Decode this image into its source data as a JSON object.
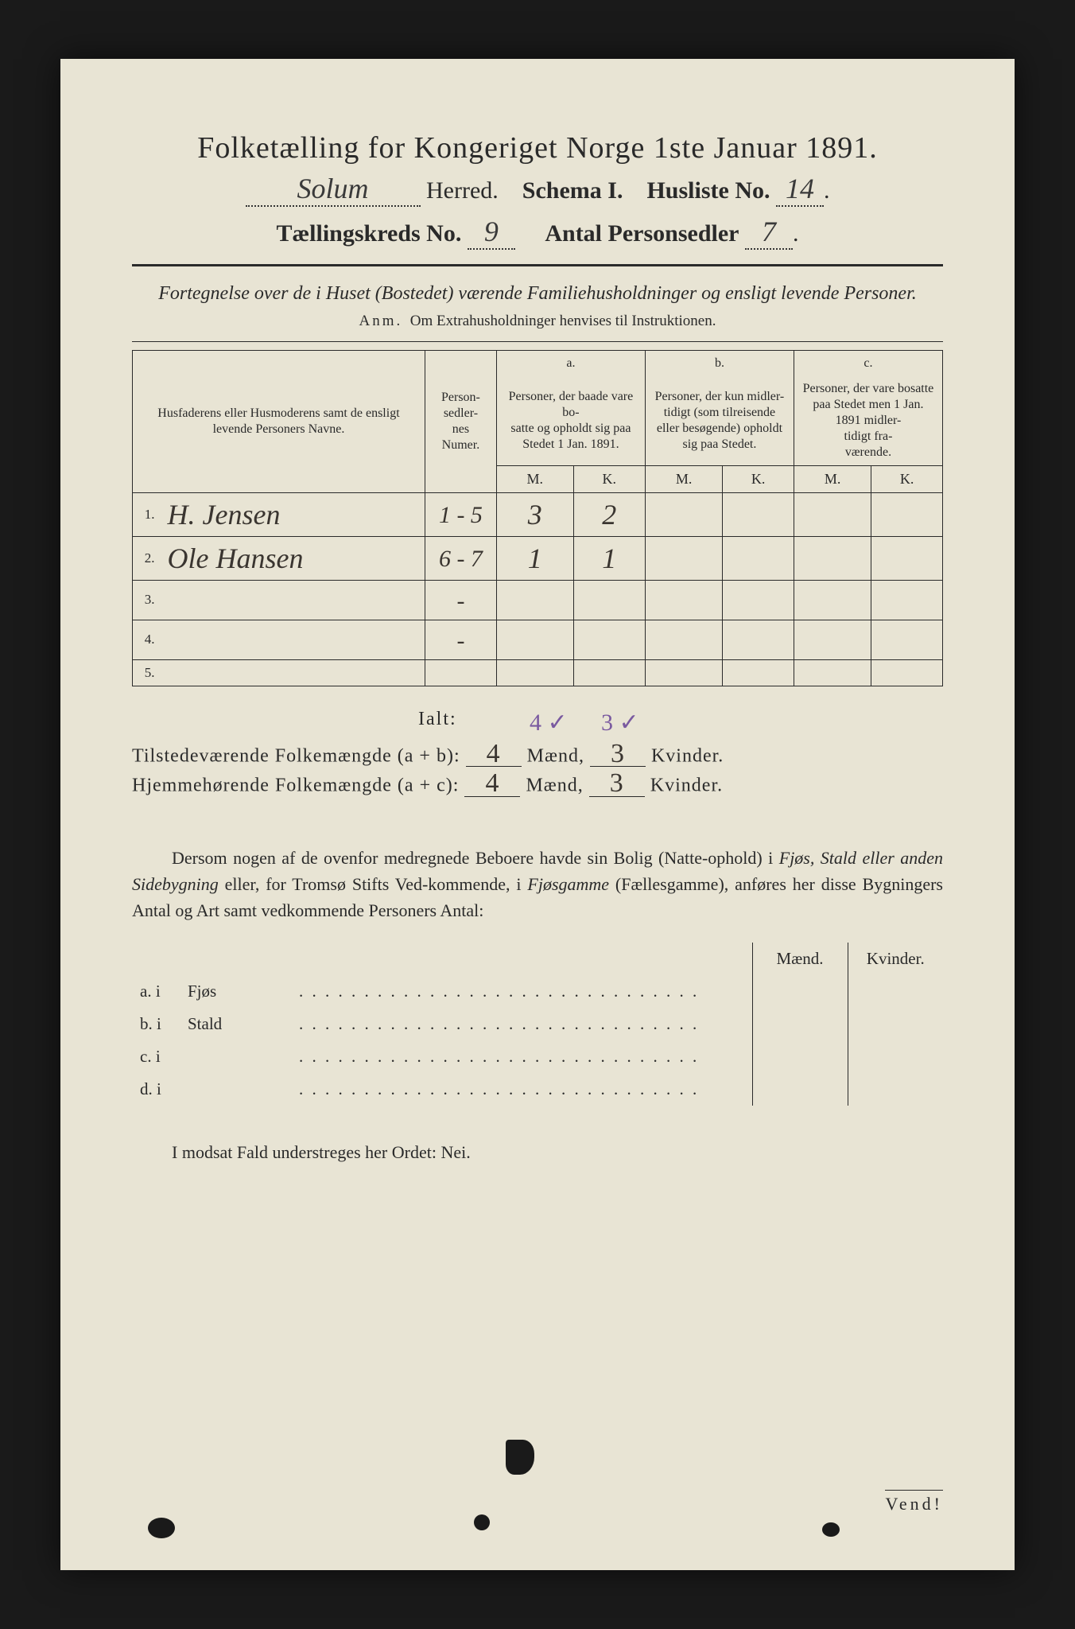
{
  "header": {
    "title": "Folketælling for Kongeriget Norge 1ste Januar 1891.",
    "herred_hand": "Solum",
    "herred_label": "Herred.",
    "schema": "Schema I.",
    "husliste_label": "Husliste No.",
    "husliste_no": "14",
    "kreds_label": "Tællingskreds No.",
    "kreds_no": "9",
    "personsedler_label": "Antal Personsedler",
    "personsedler_no": "7"
  },
  "subtitle": "Fortegnelse over de i Huset (Bostedet) værende Familiehusholdninger og ensligt levende Personer.",
  "anm_label": "Anm.",
  "anm_text": "Om Extrahusholdninger henvises til Instruktionen.",
  "table": {
    "head_name": "Husfaderens eller Husmoderens samt de ensligt levende Personers Navne.",
    "head_num": "Person-\nsedler-\nnes\nNumer.",
    "head_a_tag": "a.",
    "head_a": "Personer, der baade vare bo-\nsatte og opholdt sig paa Stedet 1 Jan. 1891.",
    "head_b_tag": "b.",
    "head_b": "Personer, der kun midler-\ntidigt (som tilreisende eller besøgende) opholdt sig paa Stedet.",
    "head_c_tag": "c.",
    "head_c": "Personer, der vare bosatte paa Stedet men 1 Jan. 1891 midler-\ntidigt fra-\nværende.",
    "m": "M.",
    "k": "K.",
    "rows": [
      {
        "n": "1.",
        "name": "H. Jensen",
        "num": "1 - 5",
        "aM": "3",
        "aK": "2",
        "bM": "",
        "bK": "",
        "cM": "",
        "cK": ""
      },
      {
        "n": "2.",
        "name": "Ole Hansen",
        "num": "6 - 7",
        "aM": "1",
        "aK": "1",
        "bM": "",
        "bK": "",
        "cM": "",
        "cK": ""
      },
      {
        "n": "3.",
        "name": "",
        "num": "-",
        "aM": "",
        "aK": "",
        "bM": "",
        "bK": "",
        "cM": "",
        "cK": ""
      },
      {
        "n": "4.",
        "name": "",
        "num": "-",
        "aM": "",
        "aK": "",
        "bM": "",
        "bK": "",
        "cM": "",
        "cK": ""
      },
      {
        "n": "5.",
        "name": "",
        "num": "",
        "aM": "",
        "aK": "",
        "bM": "",
        "bK": "",
        "cM": "",
        "cK": ""
      }
    ]
  },
  "totals": {
    "ialt": "Ialt:",
    "check_m": "4 ✓",
    "check_k": "3 ✓",
    "line1_label": "Tilstedeværende Folkemængde (a + b):",
    "line2_label": "Hjemmehørende Folkemængde (a + c):",
    "maend": "Mænd,",
    "kvinder": "Kvinder.",
    "ab_m": "4",
    "ab_k": "3",
    "ac_m": "4",
    "ac_k": "3"
  },
  "body": {
    "p1a": "Dersom nogen af de ovenfor medregnede Beboere havde sin Bolig (Natte-ophold) i ",
    "p1b": "Fjøs, Stald eller anden Sidebygning",
    "p1c": " eller, for Tromsø Stifts Ved-kommende, i ",
    "p1d": "Fjøsgamme",
    "p1e": " (Fællesgamme), anføres her disse Bygningers Antal og Art samt vedkommende Personers Antal:"
  },
  "outbld": {
    "maend": "Mænd.",
    "kvinder": "Kvinder.",
    "rows": [
      {
        "lab": "a.  i",
        "type": "Fjøs"
      },
      {
        "lab": "b.  i",
        "type": "Stald"
      },
      {
        "lab": "c.  i",
        "type": ""
      },
      {
        "lab": "d.  i",
        "type": ""
      }
    ],
    "dots": ". . . . . . . . . . . . . . . . . . . . . . . . . . . . . . ."
  },
  "nei": "I modsat Fald understreges her Ordet: Nei.",
  "vend": "Vend!",
  "colors": {
    "paper": "#e8e4d4",
    "ink": "#2a2a2a",
    "handwriting": "#3a3530",
    "purple_pencil": "#7a5aa0",
    "background": "#1a1a1a"
  }
}
